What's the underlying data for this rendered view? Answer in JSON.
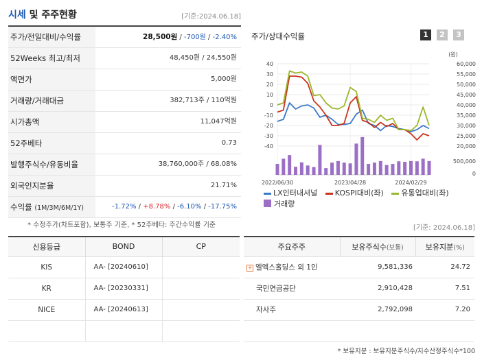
{
  "header": {
    "title_main": "시세",
    "title_rest": " 및 주주현황",
    "date": "[기준:2024.06.18]"
  },
  "stock_table": {
    "rows": [
      {
        "label": "주가/전일대비/수익률",
        "price": "28,500원",
        "sep1": " / ",
        "change": "-700원",
        "sep2": " / ",
        "pct": "-2.40%"
      },
      {
        "label": "52Weeks 최고/최저",
        "value": "48,450원 / 24,550원"
      },
      {
        "label": "액면가",
        "value": "5,000원"
      },
      {
        "label": "거래량/거래대금",
        "value": "382,713주 / 110억원"
      },
      {
        "label": "시가총액",
        "value": "11,047억원"
      },
      {
        "label": "52주베타",
        "value": "0.73"
      },
      {
        "label": "발행주식수/유동비율",
        "value": "38,760,000주 / 68.08%"
      },
      {
        "label": "외국인지분율",
        "value": "21.71%"
      },
      {
        "label": "수익률",
        "label_sub": "(1M/3M/6M/1Y)",
        "r1": "-1.72%",
        "r2": "+8.78%",
        "r3": "-6.10%",
        "r4": "-17.75%"
      }
    ],
    "note": "* 수정주가(차트포함), 보통주 기준, * 52주베타: 주간수익률 기준"
  },
  "chart_panel": {
    "title": "주가/상대수익률",
    "buttons": [
      "1",
      "2",
      "3"
    ],
    "active_button": "1",
    "legend": [
      {
        "label": "LX인터내셔널",
        "color": "#3a78c9"
      },
      {
        "label": "KOSPI대비(좌)",
        "color": "#c8341c"
      },
      {
        "label": "유통업대비(좌)",
        "color": "#9ab72a"
      },
      {
        "label": "거래량",
        "color": "#9b6fc6"
      }
    ],
    "date": "[기준: 2024.06.18]"
  },
  "chart_data": {
    "type": "line",
    "x_labels": [
      "2022/06/30",
      "2023/04/28",
      "2024/02/29"
    ],
    "left_axis": {
      "ticks": [
        "40",
        "30",
        "20",
        "10",
        "0",
        "-10",
        "-20",
        "-30",
        "-40"
      ],
      "ylim": [
        -40,
        40
      ]
    },
    "right_axis": {
      "unit": "(원)",
      "ticks": [
        "60,000",
        "55,000",
        "50,000",
        "45,000",
        "40,000",
        "35,000",
        "30,000",
        "25,000",
        "20,000"
      ],
      "ylim": [
        20000,
        60000
      ]
    },
    "volume_axis": {
      "ticks": [
        "500,000",
        "0"
      ],
      "ylim": [
        0,
        1000000
      ]
    },
    "series": [
      {
        "name": "LX인터내셔널",
        "axis": "right",
        "color": "#3a78c9",
        "values": [
          32000,
          33000,
          41000,
          38000,
          39500,
          40000,
          38500,
          34000,
          35000,
          33000,
          30500,
          30500,
          31000,
          35500,
          37500,
          31000,
          30000,
          27500,
          30000,
          29500,
          28500,
          28000,
          27000,
          28000,
          30000,
          28500
        ]
      },
      {
        "name": "KOSPI대비(좌)",
        "axis": "left",
        "color": "#c8341c",
        "values": [
          -7,
          -5,
          28,
          28,
          27,
          21,
          4,
          -2,
          -10,
          -20,
          -20,
          -18,
          2,
          8,
          -15,
          -17,
          -22,
          -17,
          -21,
          -18,
          -24,
          -24,
          -28,
          -34,
          -28,
          -30
        ]
      },
      {
        "name": "유통업대비(좌)",
        "axis": "left",
        "color": "#9ab72a",
        "values": [
          0,
          2,
          33,
          31,
          32,
          28,
          9,
          10,
          2,
          -3,
          -4,
          -1,
          17,
          13,
          -13,
          -14,
          -17,
          -10,
          -15,
          -13,
          -24,
          -24,
          -25,
          -20,
          -2,
          -20
        ]
      },
      {
        "name": "거래량",
        "axis": "volume",
        "color": "#9b6fc6",
        "type": "bar",
        "values": [
          420000,
          620000,
          760000,
          310000,
          480000,
          360000,
          300000,
          1150000,
          260000,
          470000,
          530000,
          470000,
          440000,
          1200000,
          1450000,
          420000,
          470000,
          530000,
          380000,
          420000,
          520000,
          500000,
          530000,
          520000,
          620000,
          530000
        ]
      }
    ]
  },
  "credit_table": {
    "headers": [
      "신용등급",
      "BOND",
      "CP"
    ],
    "rows": [
      {
        "agency": "KIS",
        "bond": "AA-  [20240610]",
        "cp": ""
      },
      {
        "agency": "KR",
        "bond": "AA-  [20230331]",
        "cp": ""
      },
      {
        "agency": "NICE",
        "bond": "AA-  [20240613]",
        "cp": ""
      },
      {
        "agency": "",
        "bond": "",
        "cp": ""
      }
    ]
  },
  "holders_table": {
    "headers": {
      "name": "주요주주",
      "shares": "보유주식수",
      "shares_unit": "(보통)",
      "pct": "보유지분",
      "pct_unit": "(%)"
    },
    "rows": [
      {
        "name": "엘엑스홀딩스 외 1인",
        "expand": "+",
        "shares": "9,581,336",
        "pct": "24.72"
      },
      {
        "name": "국민연금공단",
        "shares": "2,910,428",
        "pct": "7.51"
      },
      {
        "name": "자사주",
        "shares": "2,792,098",
        "pct": "7.20"
      },
      {
        "name": "",
        "shares": "",
        "pct": ""
      }
    ],
    "note": "* 보유지분 : 보유지분주식수/지수산정주식수*100"
  }
}
